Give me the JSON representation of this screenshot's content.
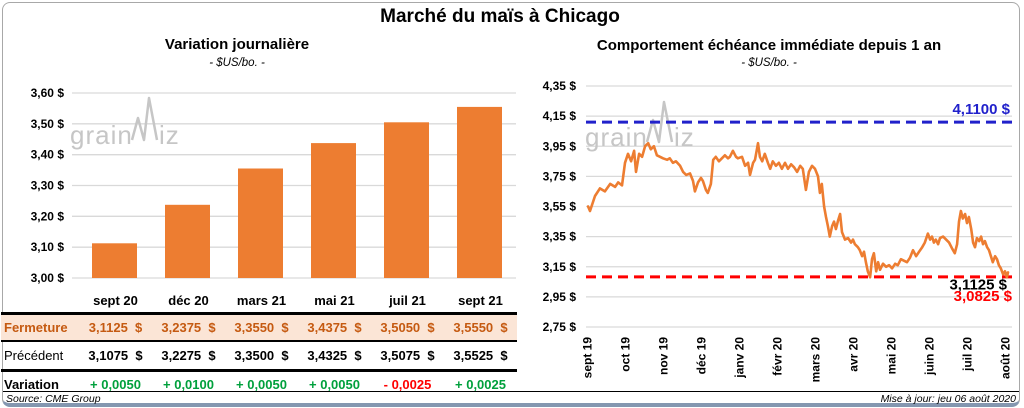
{
  "title": "Marché du maïs à Chicago",
  "watermark": {
    "part1": "grain",
    "part2": "iz"
  },
  "left_panel": {
    "title": "Variation journalière",
    "subtitle": "- $US/bo. -",
    "source": "Source: CME Group",
    "table": {
      "rows": [
        {
          "label": "Fermeture",
          "values": [
            "3,1125  $",
            "3,2375  $",
            "3,3550  $",
            "3,4375  $",
            "3,5050  $",
            "3,5550  $"
          ]
        },
        {
          "label": "Précédent",
          "values": [
            "3,1075  $",
            "3,2275  $",
            "3,3500  $",
            "3,4325  $",
            "3,5075  $",
            "3,5525  $"
          ]
        },
        {
          "label": "Variation",
          "values": [
            "+ 0,0050",
            "+ 0,0100",
            "+ 0,0050",
            "+ 0,0050",
            "- 0,0025",
            "+ 0,0025"
          ],
          "value_colors": [
            "green",
            "green",
            "green",
            "green",
            "red",
            "green"
          ]
        }
      ]
    }
  },
  "right_panel": {
    "title": "Comportement échéance immédiate depuis 1 an",
    "subtitle": "- $US/bo. -",
    "updated": "Mise à jour: jeu 06 août 2020"
  },
  "colors": {
    "orange": "#ED7D31",
    "peach_row": "#FBE5D6",
    "brown_text": "#C55A11",
    "green": "#00A03C",
    "red": "#FF0000",
    "blue": "#2121CB",
    "gridline": "#D9D9D9",
    "watermark": "#C6C6C6"
  },
  "chart_data": [
    {
      "type": "bar",
      "title": "Variation journalière",
      "ylabel": "$US/bo.",
      "categories": [
        "sept 20",
        "déc 20",
        "mars 21",
        "mai 21",
        "juil 21",
        "sept 21"
      ],
      "values": [
        3.1125,
        3.2375,
        3.355,
        3.4375,
        3.505,
        3.555
      ],
      "ylim": [
        3.0,
        3.6
      ],
      "ytick_step": 0.1,
      "yticks": [
        "3,00 $",
        "3,10 $",
        "3,20 $",
        "3,30 $",
        "3,40 $",
        "3,50 $",
        "3,60 $"
      ],
      "bar_color": "#ED7D31",
      "grid": true
    },
    {
      "type": "line",
      "title": "Comportement échéance immédiate depuis 1 an",
      "ylabel": "$US/bo.",
      "x_categories": [
        "sept 19",
        "oct 19",
        "nov 19",
        "déc 19",
        "janv 20",
        "févr 20",
        "mars 20",
        "avr 20",
        "mai 20",
        "juin 20",
        "juil 20",
        "août 20"
      ],
      "ylim": [
        2.75,
        4.35
      ],
      "ytick_step": 0.2,
      "yticks": [
        "2,75 $",
        "2,95 $",
        "3,15 $",
        "3,35 $",
        "3,55 $",
        "3,75 $",
        "3,95 $",
        "4,15 $",
        "4,35 $"
      ],
      "line_color": "#ED7D31",
      "grid": true,
      "ref_lines": [
        {
          "value": 4.11,
          "label": "4,1100 $",
          "color": "#2121CB",
          "style": "dashed"
        },
        {
          "value": 3.0825,
          "label": "3,0825 $",
          "color": "#FF0000",
          "style": "dashed"
        }
      ],
      "last_value_label": {
        "value": 3.1125,
        "label": "3,1125 $",
        "color": "#000000"
      },
      "points": [
        [
          0.03,
          3.55
        ],
        [
          0.08,
          3.52
        ],
        [
          0.21,
          3.62
        ],
        [
          0.34,
          3.67
        ],
        [
          0.47,
          3.65
        ],
        [
          0.61,
          3.7
        ],
        [
          0.74,
          3.68
        ],
        [
          0.82,
          3.71
        ],
        [
          0.92,
          3.69
        ],
        [
          1.0,
          3.84
        ],
        [
          1.08,
          3.9
        ],
        [
          1.16,
          3.85
        ],
        [
          1.24,
          3.92
        ],
        [
          1.29,
          3.78
        ],
        [
          1.37,
          3.9
        ],
        [
          1.45,
          3.88
        ],
        [
          1.53,
          3.95
        ],
        [
          1.61,
          3.97
        ],
        [
          1.68,
          3.93
        ],
        [
          1.76,
          3.95
        ],
        [
          1.84,
          3.89
        ],
        [
          1.92,
          3.88
        ],
        [
          2.0,
          3.87
        ],
        [
          2.11,
          3.86
        ],
        [
          2.18,
          3.87
        ],
        [
          2.26,
          3.84
        ],
        [
          2.34,
          3.85
        ],
        [
          2.45,
          3.82
        ],
        [
          2.53,
          3.78
        ],
        [
          2.61,
          3.76
        ],
        [
          2.71,
          3.77
        ],
        [
          2.79,
          3.72
        ],
        [
          2.84,
          3.65
        ],
        [
          2.92,
          3.71
        ],
        [
          3.0,
          3.74
        ],
        [
          3.05,
          3.72
        ],
        [
          3.13,
          3.66
        ],
        [
          3.18,
          3.64
        ],
        [
          3.26,
          3.7
        ],
        [
          3.32,
          3.86
        ],
        [
          3.39,
          3.88
        ],
        [
          3.47,
          3.85
        ],
        [
          3.55,
          3.87
        ],
        [
          3.63,
          3.89
        ],
        [
          3.71,
          3.87
        ],
        [
          3.76,
          3.88
        ],
        [
          3.84,
          3.92
        ],
        [
          3.92,
          3.88
        ],
        [
          3.97,
          3.87
        ],
        [
          4.08,
          3.88
        ],
        [
          4.16,
          3.82
        ],
        [
          4.24,
          3.84
        ],
        [
          4.29,
          3.76
        ],
        [
          4.37,
          3.84
        ],
        [
          4.42,
          3.86
        ],
        [
          4.5,
          3.97
        ],
        [
          4.55,
          3.88
        ],
        [
          4.61,
          3.85
        ],
        [
          4.68,
          3.9
        ],
        [
          4.76,
          3.84
        ],
        [
          4.82,
          3.8
        ],
        [
          4.89,
          3.85
        ],
        [
          4.97,
          3.82
        ],
        [
          5.05,
          3.84
        ],
        [
          5.13,
          3.8
        ],
        [
          5.21,
          3.84
        ],
        [
          5.29,
          3.8
        ],
        [
          5.37,
          3.83
        ],
        [
          5.45,
          3.81
        ],
        [
          5.53,
          3.78
        ],
        [
          5.61,
          3.82
        ],
        [
          5.68,
          3.8
        ],
        [
          5.76,
          3.66
        ],
        [
          5.84,
          3.78
        ],
        [
          5.92,
          3.82
        ],
        [
          6.0,
          3.8
        ],
        [
          6.08,
          3.75
        ],
        [
          6.13,
          3.64
        ],
        [
          6.18,
          3.7
        ],
        [
          6.24,
          3.55
        ],
        [
          6.29,
          3.48
        ],
        [
          6.34,
          3.42
        ],
        [
          6.39,
          3.35
        ],
        [
          6.45,
          3.42
        ],
        [
          6.5,
          3.45
        ],
        [
          6.55,
          3.4
        ],
        [
          6.61,
          3.46
        ],
        [
          6.66,
          3.5
        ],
        [
          6.71,
          3.38
        ],
        [
          6.79,
          3.33
        ],
        [
          6.87,
          3.34
        ],
        [
          6.95,
          3.31
        ],
        [
          7.0,
          3.33
        ],
        [
          7.05,
          3.3
        ],
        [
          7.13,
          3.28
        ],
        [
          7.18,
          3.26
        ],
        [
          7.24,
          3.22
        ],
        [
          7.29,
          3.25
        ],
        [
          7.34,
          3.18
        ],
        [
          7.39,
          3.12
        ],
        [
          7.45,
          3.08
        ],
        [
          7.5,
          3.2
        ],
        [
          7.55,
          3.24
        ],
        [
          7.61,
          3.12
        ],
        [
          7.66,
          3.18
        ],
        [
          7.71,
          3.13
        ],
        [
          7.79,
          3.17
        ],
        [
          7.87,
          3.15
        ],
        [
          7.95,
          3.16
        ],
        [
          8.03,
          3.14
        ],
        [
          8.11,
          3.17
        ],
        [
          8.18,
          3.16
        ],
        [
          8.26,
          3.2
        ],
        [
          8.34,
          3.19
        ],
        [
          8.42,
          3.18
        ],
        [
          8.5,
          3.21
        ],
        [
          8.58,
          3.26
        ],
        [
          8.66,
          3.22
        ],
        [
          8.74,
          3.25
        ],
        [
          8.82,
          3.28
        ],
        [
          8.89,
          3.31
        ],
        [
          8.97,
          3.37
        ],
        [
          9.03,
          3.33
        ],
        [
          9.08,
          3.35
        ],
        [
          9.13,
          3.31
        ],
        [
          9.18,
          3.33
        ],
        [
          9.24,
          3.3
        ],
        [
          9.29,
          3.34
        ],
        [
          9.37,
          3.35
        ],
        [
          9.45,
          3.33
        ],
        [
          9.53,
          3.31
        ],
        [
          9.61,
          3.27
        ],
        [
          9.68,
          3.24
        ],
        [
          9.74,
          3.3
        ],
        [
          9.79,
          3.45
        ],
        [
          9.84,
          3.52
        ],
        [
          9.89,
          3.47
        ],
        [
          9.95,
          3.5
        ],
        [
          10.0,
          3.44
        ],
        [
          10.05,
          3.48
        ],
        [
          10.11,
          3.4
        ],
        [
          10.16,
          3.31
        ],
        [
          10.21,
          3.28
        ],
        [
          10.26,
          3.34
        ],
        [
          10.32,
          3.32
        ],
        [
          10.37,
          3.35
        ],
        [
          10.42,
          3.3
        ],
        [
          10.47,
          3.32
        ],
        [
          10.53,
          3.28
        ],
        [
          10.58,
          3.26
        ],
        [
          10.63,
          3.22
        ],
        [
          10.68,
          3.18
        ],
        [
          10.74,
          3.22
        ],
        [
          10.79,
          3.2
        ],
        [
          10.84,
          3.16
        ],
        [
          10.89,
          3.14
        ],
        [
          10.95,
          3.1
        ],
        [
          11.0,
          3.12
        ],
        [
          11.05,
          3.08
        ],
        [
          11.08,
          3.1125
        ]
      ]
    }
  ]
}
